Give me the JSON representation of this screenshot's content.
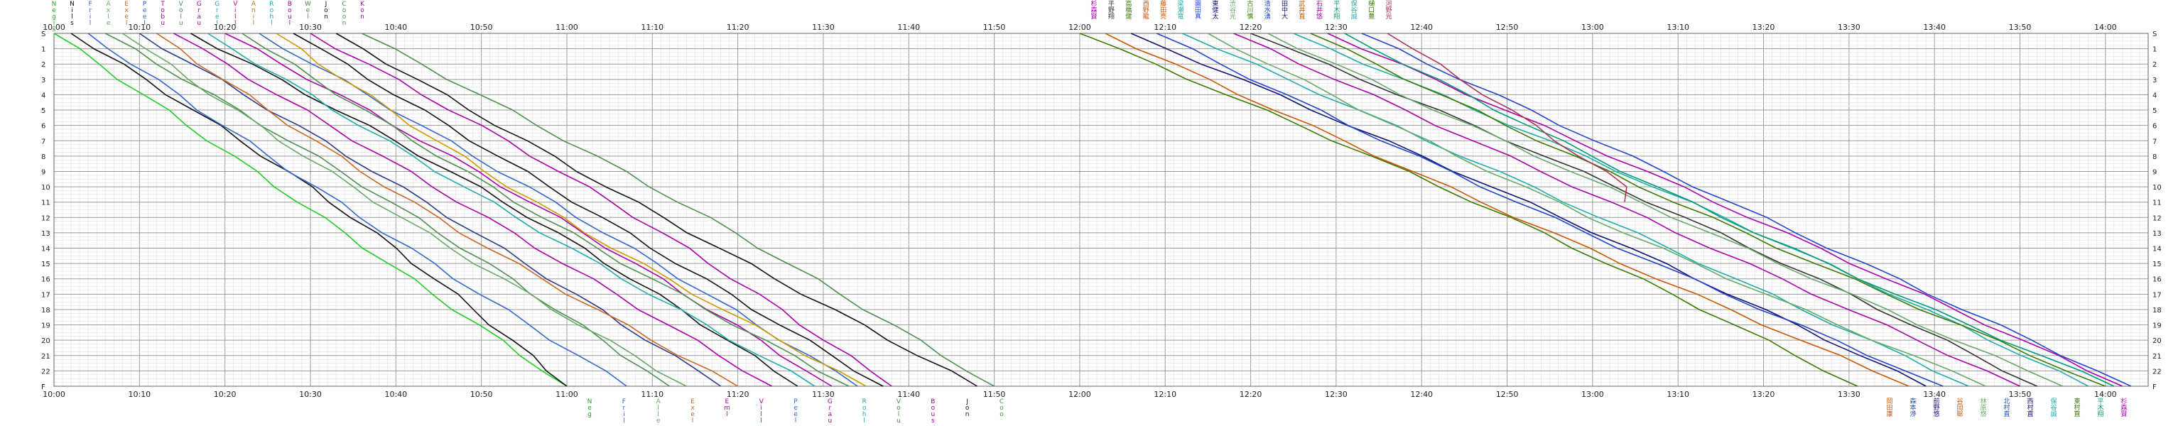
{
  "chart_data": {
    "type": "line",
    "title": "",
    "xlabel": "",
    "ylabel": "",
    "grid": true,
    "legend": "participant names written vertically at start (top) and finish (bottom) of each line",
    "xlim": [
      "10:00",
      "14:05"
    ],
    "x_tick_labels": [
      "10:00",
      "10:10",
      "10:20",
      "10:30",
      "10:40",
      "10:50",
      "11:00",
      "11:10",
      "11:20",
      "11:30",
      "11:40",
      "11:50",
      "12:00",
      "12:10",
      "12:20",
      "12:30",
      "12:40",
      "12:50",
      "13:00",
      "13:10",
      "13:20",
      "13:30",
      "13:40",
      "13:50",
      "14:00"
    ],
    "y_tick_labels": [
      "S",
      "1",
      "2",
      "3",
      "4",
      "5",
      "6",
      "7",
      "8",
      "9",
      "10",
      "11",
      "12",
      "13",
      "14",
      "15",
      "16",
      "17",
      "18",
      "19",
      "20",
      "21",
      "22",
      "F"
    ],
    "ylim": [
      "S",
      "F"
    ],
    "colors": {
      "background": "#ffffff",
      "grid_minor": "#dddddd",
      "grid_major": "#9a9a9a"
    },
    "series_group_1": [
      {
        "color": "#22cc22",
        "start": "10:00",
        "finish": "11:00"
      },
      {
        "color": "#111111",
        "start": "10:02",
        "finish": "11:00"
      },
      {
        "color": "#3366cc",
        "start": "10:04",
        "finish": "11:07"
      },
      {
        "color": "#4e8f4e",
        "start": "10:06",
        "finish": "11:12"
      },
      {
        "color": "#66aa66",
        "start": "10:08",
        "finish": "11:14"
      },
      {
        "color": "#2a3a88",
        "start": "10:10",
        "finish": "11:18"
      },
      {
        "color": "#cc6622",
        "start": "10:12",
        "finish": "11:20"
      },
      {
        "color": "#aa00aa",
        "start": "10:14",
        "finish": "11:24"
      },
      {
        "color": "#111111",
        "start": "10:16",
        "finish": "11:27"
      },
      {
        "color": "#22aaaa",
        "start": "10:18",
        "finish": "11:29"
      },
      {
        "color": "#aa00aa",
        "start": "10:20",
        "finish": "11:31"
      },
      {
        "color": "#4e8f4e",
        "start": "10:22",
        "finish": "11:33"
      },
      {
        "color": "#3366cc",
        "start": "10:24",
        "finish": "11:34"
      },
      {
        "color": "#cc9900",
        "start": "10:26",
        "finish": "11:35"
      },
      {
        "color": "#111111",
        "start": "10:28",
        "finish": "11:37"
      },
      {
        "color": "#aa00aa",
        "start": "10:30",
        "finish": "11:38"
      },
      {
        "color": "#111111",
        "start": "10:33",
        "finish": "11:48"
      },
      {
        "color": "#4e8f4e",
        "start": "10:36",
        "finish": "11:50"
      }
    ],
    "series_group_2": [
      {
        "color": "#3a7a00",
        "start": "12:00",
        "finish": "13:31"
      },
      {
        "color": "#cc5500",
        "start": "12:03",
        "finish": "13:37"
      },
      {
        "color": "#111177",
        "start": "12:06",
        "finish": "13:39"
      },
      {
        "color": "#2244cc",
        "start": "12:09",
        "finish": "13:41"
      },
      {
        "color": "#22aaaa",
        "start": "12:12",
        "finish": "13:44"
      },
      {
        "color": "#66aa66",
        "start": "12:15",
        "finish": "13:46"
      },
      {
        "color": "#aa00aa",
        "start": "12:18",
        "finish": "13:50"
      },
      {
        "color": "#333333",
        "start": "12:20",
        "finish": "13:52"
      },
      {
        "color": "#66aa66",
        "start": "12:22",
        "finish": "13:55"
      },
      {
        "color": "#22aaaa",
        "start": "12:25",
        "finish": "13:58"
      },
      {
        "color": "#3a7a00",
        "start": "12:27",
        "finish": "14:00"
      },
      {
        "color": "#aa00aa",
        "start": "12:29",
        "finish": "14:02"
      },
      {
        "color": "#009977",
        "start": "12:31",
        "finish": "14:01"
      },
      {
        "color": "#2244cc",
        "start": "12:33",
        "finish": "14:03"
      },
      {
        "color": "#aa3355",
        "start": "12:36",
        "finish": "13:34",
        "last_row": "11"
      }
    ],
    "name_labels": {
      "group_1_top": [
        {
          "text": "Negis",
          "color": "#22aa22"
        },
        {
          "text": "Nils",
          "color": "#111111"
        },
        {
          "text": "Fril",
          "color": "#3366cc"
        },
        {
          "text": "Axle",
          "color": "#66aa66"
        },
        {
          "text": "Exel",
          "color": "#cc6622"
        },
        {
          "text": "Peel",
          "color": "#3366cc"
        },
        {
          "text": "Tobu",
          "color": "#aa00aa"
        },
        {
          "text": "Volu",
          "color": "#4e8f4e"
        },
        {
          "text": "Grau",
          "color": "#aa00aa"
        },
        {
          "text": "Grel",
          "color": "#22aaaa"
        },
        {
          "text": "Vill",
          "color": "#aa00aa"
        },
        {
          "text": "Anil",
          "color": "#cc6622"
        },
        {
          "text": "Rohl",
          "color": "#22aaaa"
        },
        {
          "text": "Boul",
          "color": "#aa00aa"
        },
        {
          "text": "Wel",
          "color": "#4e8f4e"
        },
        {
          "text": "Jon",
          "color": "#111111"
        },
        {
          "text": "Coon",
          "color": "#4e8f4e"
        },
        {
          "text": "Kon",
          "color": "#aa00aa"
        }
      ],
      "group_1_bottom": [
        {
          "text": "Neg",
          "color": "#22aa22"
        },
        {
          "text": "Fril",
          "color": "#3366cc"
        },
        {
          "text": "Alle",
          "color": "#66aa66"
        },
        {
          "text": "Exel",
          "color": "#cc6622"
        },
        {
          "text": "Eml",
          "color": "#aa00aa"
        },
        {
          "text": "Vill",
          "color": "#aa00aa"
        },
        {
          "text": "Peel",
          "color": "#3366cc"
        },
        {
          "text": "Grau",
          "color": "#aa00aa"
        },
        {
          "text": "Rohl",
          "color": "#22aaaa"
        },
        {
          "text": "Volu",
          "color": "#4e8f4e"
        },
        {
          "text": "Bous",
          "color": "#aa00aa"
        },
        {
          "text": "Jon",
          "color": "#111111"
        },
        {
          "text": "Coo",
          "color": "#4e8f4e"
        }
      ],
      "group_2_top": [
        {
          "text": "杉森賢",
          "color": "#aa00aa"
        },
        {
          "text": "平野翔",
          "color": "#333333"
        },
        {
          "text": "高橋健",
          "color": "#3a7a00"
        },
        {
          "text": "西野龍",
          "color": "#cc5500"
        },
        {
          "text": "藤田亮",
          "color": "#cc5500"
        },
        {
          "text": "梁瀬竜",
          "color": "#22aaaa"
        },
        {
          "text": "園田真",
          "color": "#2244cc"
        },
        {
          "text": "東健太",
          "color": "#111177"
        },
        {
          "text": "渋谷光",
          "color": "#66aa66"
        },
        {
          "text": "古川慎",
          "color": "#3a7a00"
        },
        {
          "text": "清水湧",
          "color": "#2244cc"
        },
        {
          "text": "田中大",
          "color": "#111177"
        },
        {
          "text": "武井直",
          "color": "#cc5500"
        },
        {
          "text": "石井悠",
          "color": "#aa00aa"
        },
        {
          "text": "平木翔",
          "color": "#009977"
        },
        {
          "text": "保谷誠",
          "color": "#22aaaa"
        },
        {
          "text": "樋口豊",
          "color": "#3a7a00"
        },
        {
          "text": "河野光",
          "color": "#aa3355"
        }
      ],
      "group_2_bottom": [
        {
          "text": "岡田康",
          "color": "#cc5500"
        },
        {
          "text": "森本渉",
          "color": "#2244cc"
        },
        {
          "text": "前野悠",
          "color": "#111177"
        },
        {
          "text": "谷岡聡",
          "color": "#cc5500"
        },
        {
          "text": "林原悠",
          "color": "#66aa66"
        },
        {
          "text": "北村直",
          "color": "#2244cc"
        },
        {
          "text": "西村直",
          "color": "#111177"
        },
        {
          "text": "保谷誠",
          "color": "#22aaaa"
        },
        {
          "text": "東村直",
          "color": "#3a7a00"
        },
        {
          "text": "平木翔",
          "color": "#009977"
        },
        {
          "text": "杉森賢",
          "color": "#aa00aa"
        }
      ]
    }
  }
}
